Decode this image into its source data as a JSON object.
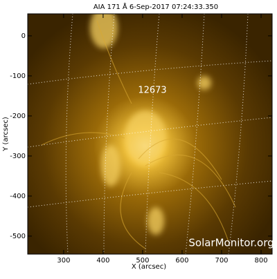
{
  "chart_data": {
    "type": "image",
    "title": "AIA 171 Å  6-Sep-2017 07:24:33.350",
    "xlabel": "X (arcsec)",
    "ylabel": "Y (arcsec)",
    "xlim": [
      209,
      828
    ],
    "ylim": [
      -545,
      55
    ],
    "xticks": [
      300,
      400,
      500,
      600,
      700,
      800
    ],
    "yticks": [
      0,
      -100,
      -200,
      -300,
      -400,
      -500
    ],
    "annotations": [
      "12673"
    ],
    "watermark": "SolarMonitor.org"
  }
}
